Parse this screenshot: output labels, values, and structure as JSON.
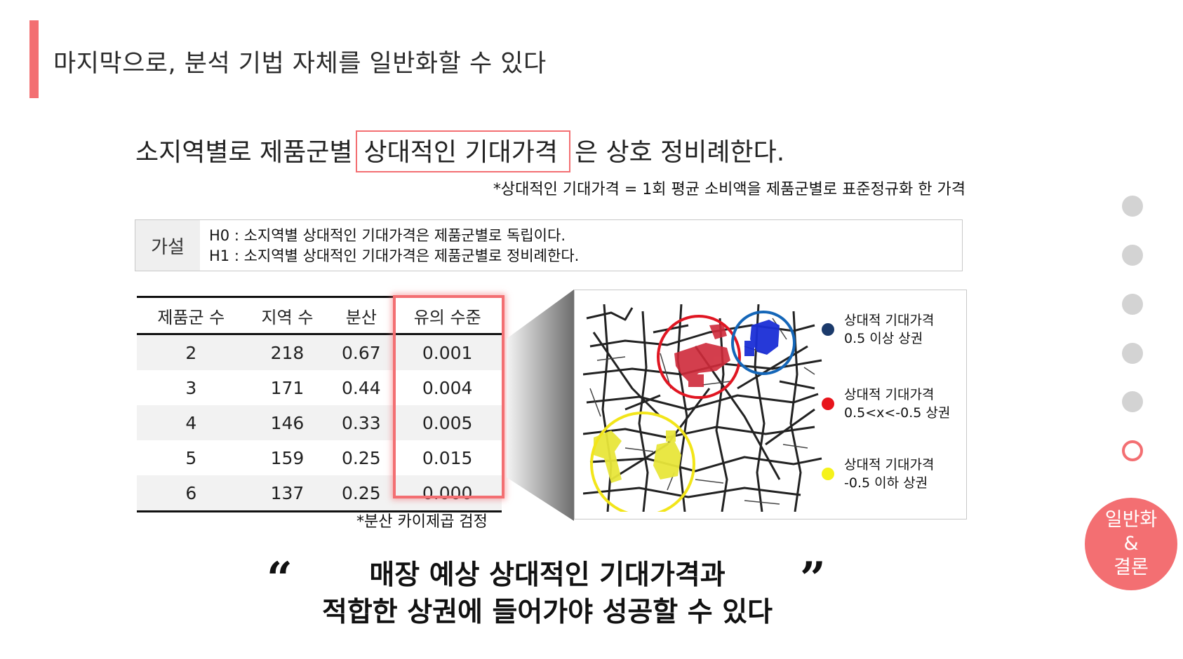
{
  "slide": {
    "title": "마지막으로, 분석 기법 자체를 일반화할 수 있다",
    "accent_color": "#f36f72"
  },
  "headline": {
    "prefix": "소지역별로 제품군별",
    "boxed": "상대적인 기대가격",
    "suffix": "은 상호 정비례한다."
  },
  "definition_note": "*상대적인 기대가격 = 1회 평균 소비액을 제품군별로 표준정규화 한 가격",
  "hypothesis": {
    "label": "가설",
    "h0": "H0 : 소지역별 상대적인 기대가격은 제품군별로 독립이다.",
    "h1": "H1 : 소지역별 상대적인 기대가격은 제품군별로 정비례한다."
  },
  "table": {
    "headers": [
      "제품군 수",
      "지역 수",
      "분산",
      "유의 수준"
    ],
    "rows": [
      [
        "2",
        "218",
        "0.67",
        "0.001"
      ],
      [
        "3",
        "171",
        "0.44",
        "0.004"
      ],
      [
        "4",
        "146",
        "0.33",
        "0.005"
      ],
      [
        "5",
        "159",
        "0.25",
        "0.015"
      ],
      [
        "6",
        "137",
        "0.25",
        "0.000"
      ]
    ],
    "footnote": "*분산 카이제곱 검정"
  },
  "map": {
    "legend": [
      {
        "color": "#1b3a6b",
        "line1": "상대적 기대가격",
        "line2": "0.5 이상 상권"
      },
      {
        "color": "#e8141b",
        "line1": "상대적 기대가격",
        "line2": "0.5<x<-0.5 상권"
      },
      {
        "color": "#f5f21a",
        "line1": "상대적 기대가격",
        "line2": "-0.5 이하 상권"
      }
    ]
  },
  "quote": {
    "open": "“",
    "close": "”",
    "line1": "매장 예상 상대적인 기대가격과",
    "line2": "적합한 상권에 들어가야 성공할 수 있다"
  },
  "nav": {
    "active_label_1": "일반화",
    "active_label_2": "&",
    "active_label_3": "결론"
  }
}
